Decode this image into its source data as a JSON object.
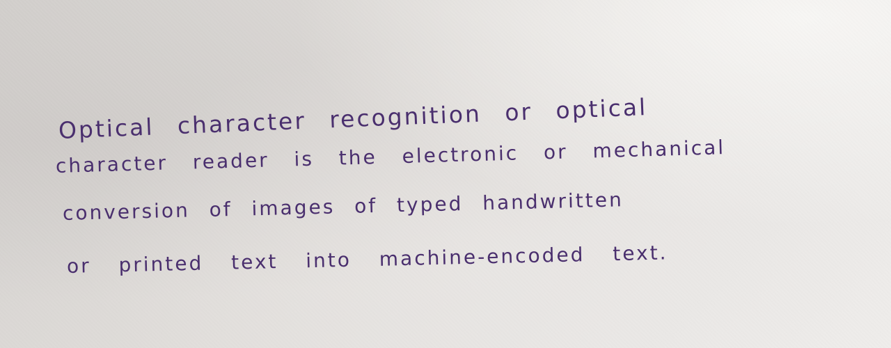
{
  "handwriting": {
    "lines": [
      "Optical character recognition or optical",
      "character reader is the electronic or mechanical",
      "conversion of images of typed handwritten",
      "or printed text into machine-encoded text."
    ]
  },
  "ink_color": "#4a2f6e",
  "paper_color": "#e3e0dd"
}
